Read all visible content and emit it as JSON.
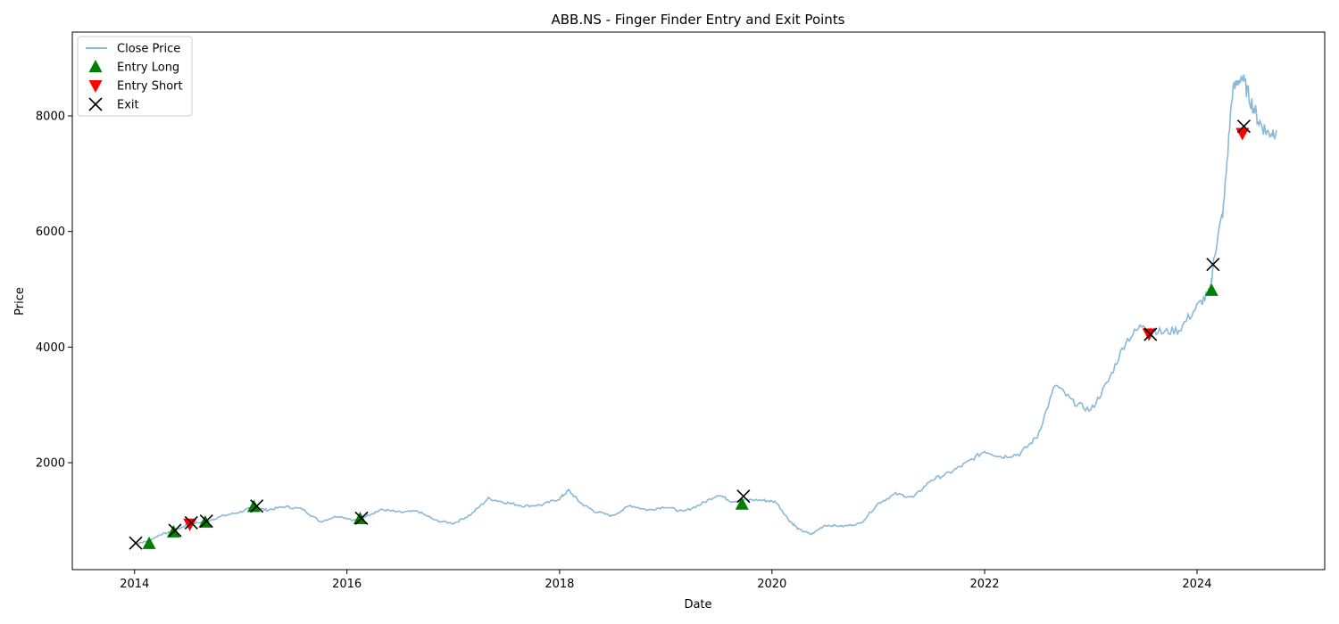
{
  "chart_data": {
    "type": "line",
    "title": "ABB.NS - Finger Finder Entry and Exit Points",
    "xlabel": "Date",
    "ylabel": "Price",
    "xlim": [
      "2013-06-01",
      "2025-03-15"
    ],
    "ylim": [
      150,
      9450
    ],
    "x_ticks": [
      "2014",
      "2016",
      "2018",
      "2020",
      "2022",
      "2024"
    ],
    "y_ticks": [
      2000,
      4000,
      6000,
      8000
    ],
    "grid": false,
    "legend_position": "top-left",
    "series": [
      {
        "name": "Close Price",
        "color": "#8ab8d8",
        "marker": "line",
        "points": [
          [
            "2014-01-02",
            600
          ],
          [
            "2014-02-15",
            640
          ],
          [
            "2014-04-01",
            760
          ],
          [
            "2014-05-15",
            810
          ],
          [
            "2014-07-01",
            930
          ],
          [
            "2014-09-01",
            980
          ],
          [
            "2014-11-01",
            1080
          ],
          [
            "2015-01-01",
            1150
          ],
          [
            "2015-02-15",
            1230
          ],
          [
            "2015-04-01",
            1180
          ],
          [
            "2015-06-01",
            1240
          ],
          [
            "2015-08-01",
            1200
          ],
          [
            "2015-10-01",
            980
          ],
          [
            "2015-12-01",
            1080
          ],
          [
            "2016-02-01",
            1000
          ],
          [
            "2016-03-15",
            1100
          ],
          [
            "2016-05-01",
            1190
          ],
          [
            "2016-07-01",
            1140
          ],
          [
            "2016-09-01",
            1160
          ],
          [
            "2016-11-01",
            1000
          ],
          [
            "2017-01-01",
            950
          ],
          [
            "2017-03-01",
            1100
          ],
          [
            "2017-05-01",
            1380
          ],
          [
            "2017-07-01",
            1310
          ],
          [
            "2017-09-01",
            1250
          ],
          [
            "2017-11-01",
            1270
          ],
          [
            "2018-01-01",
            1380
          ],
          [
            "2018-02-01",
            1520
          ],
          [
            "2018-03-15",
            1300
          ],
          [
            "2018-05-01",
            1160
          ],
          [
            "2018-07-01",
            1080
          ],
          [
            "2018-09-01",
            1260
          ],
          [
            "2018-11-01",
            1180
          ],
          [
            "2019-01-01",
            1240
          ],
          [
            "2019-03-01",
            1150
          ],
          [
            "2019-05-01",
            1280
          ],
          [
            "2019-07-01",
            1450
          ],
          [
            "2019-08-15",
            1330
          ],
          [
            "2019-10-01",
            1360
          ],
          [
            "2019-12-01",
            1350
          ],
          [
            "2020-01-15",
            1320
          ],
          [
            "2020-03-01",
            1000
          ],
          [
            "2020-04-01",
            850
          ],
          [
            "2020-05-15",
            760
          ],
          [
            "2020-07-01",
            920
          ],
          [
            "2020-09-01",
            900
          ],
          [
            "2020-11-01",
            950
          ],
          [
            "2021-01-01",
            1300
          ],
          [
            "2021-03-01",
            1460
          ],
          [
            "2021-05-01",
            1400
          ],
          [
            "2021-07-01",
            1700
          ],
          [
            "2021-09-01",
            1820
          ],
          [
            "2021-11-01",
            2000
          ],
          [
            "2022-01-01",
            2200
          ],
          [
            "2022-03-01",
            2100
          ],
          [
            "2022-05-01",
            2150
          ],
          [
            "2022-07-01",
            2450
          ],
          [
            "2022-09-01",
            3350
          ],
          [
            "2022-11-01",
            3050
          ],
          [
            "2023-01-01",
            2900
          ],
          [
            "2023-03-01",
            3400
          ],
          [
            "2023-05-01",
            4100
          ],
          [
            "2023-07-01",
            4400
          ],
          [
            "2023-09-01",
            4250
          ],
          [
            "2023-11-01",
            4300
          ],
          [
            "2024-01-01",
            4700
          ],
          [
            "2024-02-15",
            4950
          ],
          [
            "2024-03-01",
            5600
          ],
          [
            "2024-04-01",
            6400
          ],
          [
            "2024-05-01",
            8400
          ],
          [
            "2024-06-01",
            8700
          ],
          [
            "2024-07-01",
            8300
          ],
          [
            "2024-08-01",
            7900
          ],
          [
            "2024-09-01",
            7700
          ],
          [
            "2024-09-30",
            7750
          ]
        ]
      },
      {
        "name": "Entry Long",
        "color": "#008000",
        "marker": "triangle-up",
        "points": [
          [
            "2014-02-20",
            600
          ],
          [
            "2014-05-15",
            800
          ],
          [
            "2014-09-01",
            970
          ],
          [
            "2015-02-15",
            1240
          ],
          [
            "2016-02-15",
            1030
          ],
          [
            "2019-09-20",
            1280
          ],
          [
            "2024-02-20",
            4980
          ]
        ]
      },
      {
        "name": "Entry Short",
        "color": "#ff0000",
        "marker": "triangle-down",
        "points": [
          [
            "2014-07-10",
            940
          ],
          [
            "2023-07-20",
            4230
          ],
          [
            "2024-06-05",
            7700
          ]
        ]
      },
      {
        "name": "Exit",
        "color": "#000000",
        "marker": "x",
        "points": [
          [
            "2014-01-05",
            610
          ],
          [
            "2014-05-20",
            830
          ],
          [
            "2014-07-15",
            960
          ],
          [
            "2014-09-05",
            990
          ],
          [
            "2015-02-25",
            1250
          ],
          [
            "2016-02-20",
            1040
          ],
          [
            "2019-09-25",
            1420
          ],
          [
            "2023-07-25",
            4220
          ],
          [
            "2024-02-25",
            5430
          ],
          [
            "2024-06-10",
            7820
          ]
        ]
      }
    ]
  }
}
